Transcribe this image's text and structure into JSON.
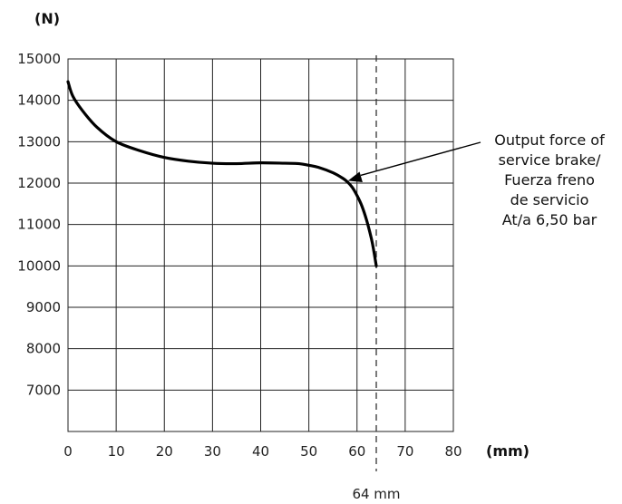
{
  "chart_data": {
    "type": "line",
    "title": "",
    "xlabel": "(mm)",
    "ylabel": "(N)",
    "xlim": [
      0,
      80
    ],
    "ylim": [
      6000,
      15000
    ],
    "x_ticks": [
      "0",
      "10",
      "20",
      "30",
      "40",
      "50",
      "60",
      "70",
      "80"
    ],
    "y_ticks": [
      "15000",
      "14000",
      "13000",
      "12000",
      "11000",
      "10000",
      "9000",
      "8000",
      "7000"
    ],
    "y_tick_values": [
      15000,
      14000,
      13000,
      12000,
      11000,
      10000,
      9000,
      8000,
      7000
    ],
    "grid": true,
    "series": [
      {
        "name": "",
        "x": [
          0,
          1,
          3,
          6,
          10,
          15,
          20,
          25,
          30,
          35,
          40,
          45,
          48,
          50,
          52,
          55,
          57,
          58,
          59,
          60,
          61,
          62,
          63,
          63.5,
          64
        ],
        "y": [
          14450,
          14100,
          13750,
          13350,
          13000,
          12780,
          12620,
          12530,
          12480,
          12470,
          12490,
          12480,
          12470,
          12430,
          12380,
          12250,
          12120,
          12030,
          11900,
          11700,
          11450,
          11100,
          10650,
          10350,
          10000
        ]
      }
    ],
    "reference_line": {
      "x": 64,
      "label": "64 mm",
      "style": "dashed"
    },
    "annotation": {
      "lines": [
        "Output force of",
        "service brake/",
        "Fuerza freno",
        "de servicio",
        "At/a 6,50 bar"
      ],
      "points_to": {
        "x": 57,
        "y": 12100
      }
    }
  }
}
